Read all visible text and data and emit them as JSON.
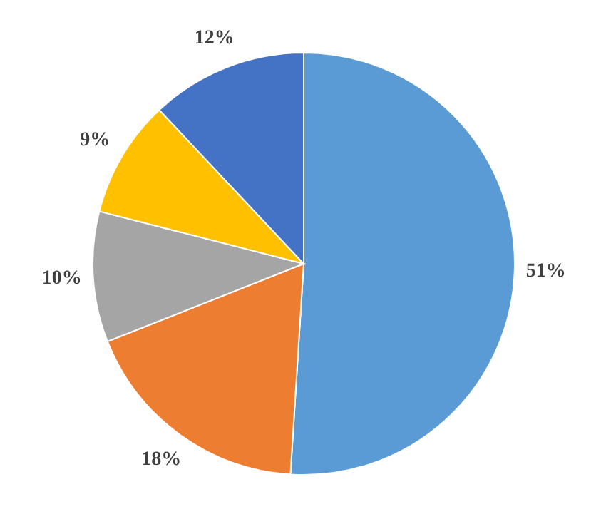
{
  "chart_data": {
    "type": "pie",
    "categories": [
      null,
      null,
      null,
      null,
      null
    ],
    "values": [
      51,
      18,
      10,
      9,
      12
    ],
    "colors": [
      "#5b9bd5",
      "#ed7d31",
      "#a5a5a5",
      "#ffc000",
      "#4472c4"
    ],
    "value_labels": [
      "51%",
      "18%",
      "10%",
      "9%",
      "12%"
    ]
  }
}
